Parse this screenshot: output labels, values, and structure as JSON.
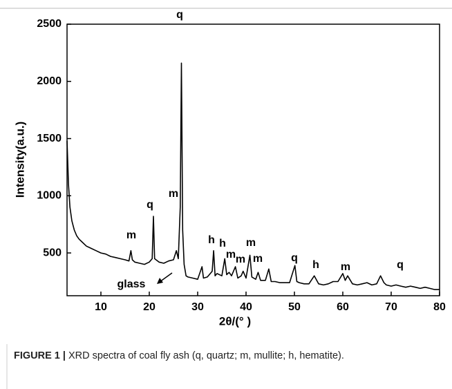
{
  "chart_data": {
    "type": "line",
    "xlabel": "2θ/(° )",
    "ylabel": "Intensity(a.u.)",
    "xlim": [
      3,
      80
    ],
    "ylim": [
      126,
      2500
    ],
    "xticks": [
      10,
      20,
      30,
      40,
      50,
      60,
      70,
      80
    ],
    "yticks": [
      500,
      1000,
      1500,
      2000,
      2500
    ],
    "color": "#000000",
    "annotations": [
      "m",
      "q",
      "m",
      "q",
      "h",
      "h",
      "m",
      "m",
      "m",
      "m",
      "q",
      "h",
      "m",
      "q",
      "glass"
    ],
    "x": [
      3,
      3.3,
      3.6,
      4,
      4.5,
      5,
      5.5,
      6,
      7,
      8,
      9,
      10,
      11,
      12,
      13,
      14,
      15,
      15.8,
      16.2,
      16.5,
      17,
      18,
      19,
      20,
      20.6,
      20.85,
      21.1,
      22,
      23,
      24,
      25,
      25.6,
      26,
      26.4,
      26.65,
      26.9,
      27.2,
      27.6,
      28,
      29,
      30,
      30.9,
      31.2,
      32,
      33,
      33.3,
      33.6,
      34,
      35,
      35.6,
      36,
      36.5,
      37,
      37.8,
      38.3,
      39,
      39.4,
      40,
      40.8,
      41.2,
      42,
      42.5,
      43,
      44,
      44.7,
      45.2,
      46,
      47,
      48,
      49,
      50.1,
      50.5,
      51,
      52,
      53,
      54.1,
      55,
      56,
      57,
      58,
      59,
      60,
      60.5,
      61,
      62,
      63,
      64,
      65,
      66,
      67,
      67.8,
      68.5,
      69,
      70,
      71,
      72,
      73,
      74,
      75,
      76,
      77,
      78,
      79,
      80
    ],
    "values": [
      1480,
      1100,
      900,
      780,
      700,
      650,
      620,
      600,
      560,
      540,
      520,
      500,
      490,
      470,
      460,
      450,
      440,
      430,
      520,
      440,
      420,
      410,
      400,
      420,
      450,
      820,
      450,
      420,
      410,
      430,
      440,
      520,
      450,
      900,
      2160,
      700,
      400,
      300,
      290,
      280,
      270,
      380,
      280,
      290,
      340,
      520,
      300,
      320,
      300,
      450,
      310,
      330,
      300,
      380,
      280,
      300,
      340,
      280,
      480,
      290,
      270,
      330,
      260,
      260,
      360,
      250,
      250,
      240,
      240,
      240,
      390,
      250,
      240,
      230,
      230,
      300,
      230,
      220,
      230,
      250,
      250,
      320,
      260,
      300,
      230,
      220,
      230,
      240,
      220,
      230,
      300,
      240,
      220,
      210,
      220,
      210,
      200,
      210,
      200,
      190,
      200,
      190,
      180,
      180
    ]
  },
  "caption": {
    "label": "FIGURE 1 |",
    "text": "XRD spectra of coal fly ash (q, quartz; m, mullite; h, hematite)."
  }
}
